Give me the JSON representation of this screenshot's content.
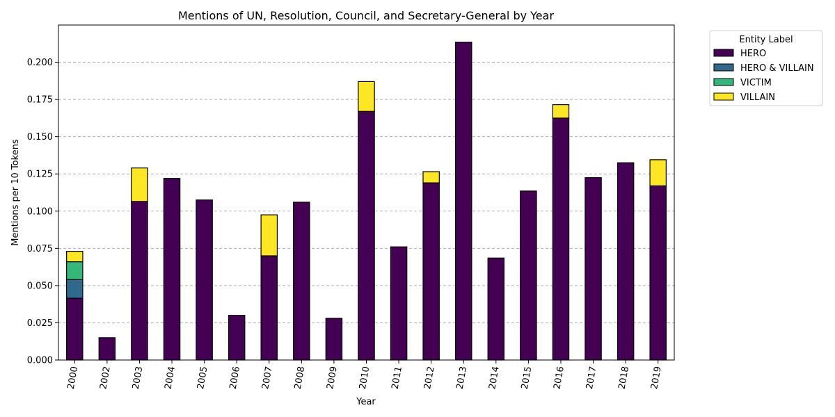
{
  "chart_data": {
    "type": "bar",
    "stacked": true,
    "title": "Mentions of UN, Resolution, Council, and Secretary-General by Year",
    "xlabel": "Year",
    "ylabel": "Mentions per 10 Tokens",
    "ylim": [
      0,
      0.225
    ],
    "yticks": [
      "0.000",
      "0.025",
      "0.050",
      "0.075",
      "0.100",
      "0.125",
      "0.150",
      "0.175",
      "0.200"
    ],
    "grid": "y-dashed",
    "legend_title": "Entity Label",
    "legend_position": "outside-top-right",
    "categories": [
      "2000",
      "2002",
      "2003",
      "2004",
      "2005",
      "2006",
      "2007",
      "2008",
      "2009",
      "2010",
      "2011",
      "2012",
      "2013",
      "2014",
      "2015",
      "2016",
      "2017",
      "2018",
      "2019"
    ],
    "series": [
      {
        "name": "HERO",
        "color": "#440154",
        "values": [
          0.0415,
          0.015,
          0.1065,
          0.122,
          0.1075,
          0.03,
          0.07,
          0.106,
          0.028,
          0.167,
          0.076,
          0.119,
          0.2135,
          0.0685,
          0.1135,
          0.1625,
          0.1225,
          0.1325,
          0.117
        ]
      },
      {
        "name": "HERO & VILLAIN",
        "color": "#31688e",
        "values": [
          0.0125,
          0,
          0,
          0,
          0,
          0,
          0,
          0,
          0,
          0,
          0,
          0,
          0,
          0,
          0,
          0,
          0,
          0,
          0
        ]
      },
      {
        "name": "VICTIM",
        "color": "#35b779",
        "values": [
          0.012,
          0,
          0,
          0,
          0,
          0,
          0,
          0,
          0,
          0,
          0,
          0,
          0,
          0,
          0,
          0,
          0,
          0,
          0
        ]
      },
      {
        "name": "VILLAIN",
        "color": "#fde725",
        "values": [
          0.007,
          0,
          0.0225,
          0,
          0,
          0,
          0.0275,
          0,
          0,
          0.02,
          0,
          0.0075,
          0,
          0,
          0,
          0.009,
          0,
          0,
          0.0175
        ]
      }
    ]
  }
}
